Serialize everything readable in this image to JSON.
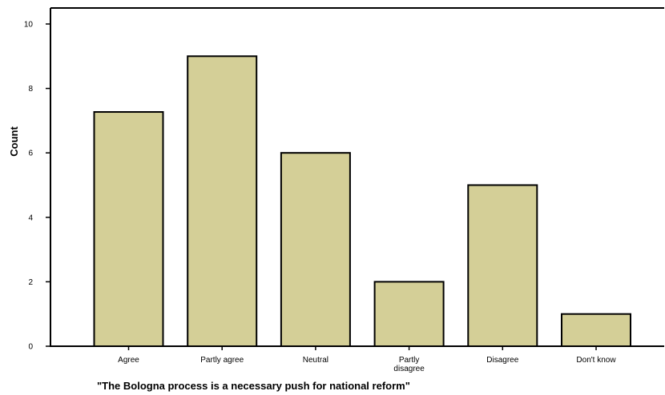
{
  "chart_data": {
    "type": "bar",
    "categories": [
      "Agree",
      "Partly agree",
      "Neutral",
      "Partly\ndisagree",
      "Disagree",
      "Don't know"
    ],
    "values": [
      7.27,
      9,
      6,
      2,
      5,
      1
    ],
    "xlabel": "\"The Bologna process is a necessary push for national reform\"",
    "ylabel": "Count",
    "ylim": [
      0,
      10
    ],
    "yticks": [
      0,
      2,
      4,
      6,
      8,
      10
    ],
    "grid": false,
    "legend": "none",
    "bar_color": "#d4cf97",
    "edge_color": "#000000"
  }
}
